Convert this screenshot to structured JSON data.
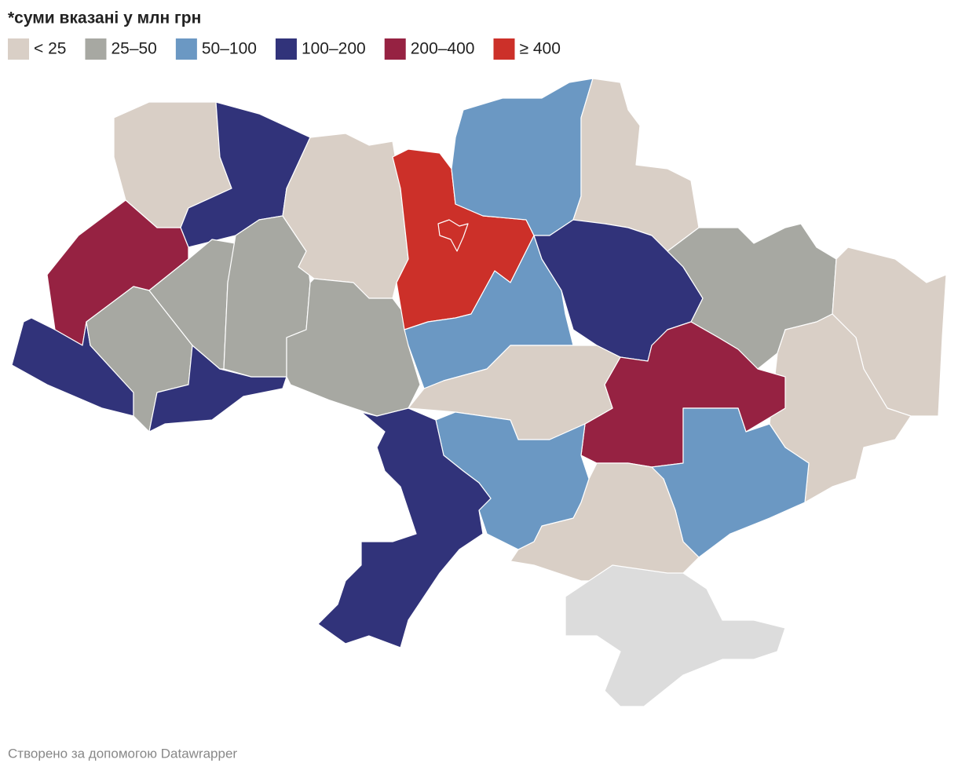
{
  "title": "*суми вказані у млн грн",
  "legend": [
    {
      "label": "< 25",
      "color": "#d9cfc6"
    },
    {
      "label": "25–50",
      "color": "#a7a8a2"
    },
    {
      "label": "50–100",
      "color": "#6b98c3"
    },
    {
      "label": "100–200",
      "color": "#31337a"
    },
    {
      "label": "200–400",
      "color": "#962242"
    },
    {
      "label": "≥ 400",
      "color": "#cc3029"
    }
  ],
  "footer": "Створено за допомогою Datawrapper"
}
